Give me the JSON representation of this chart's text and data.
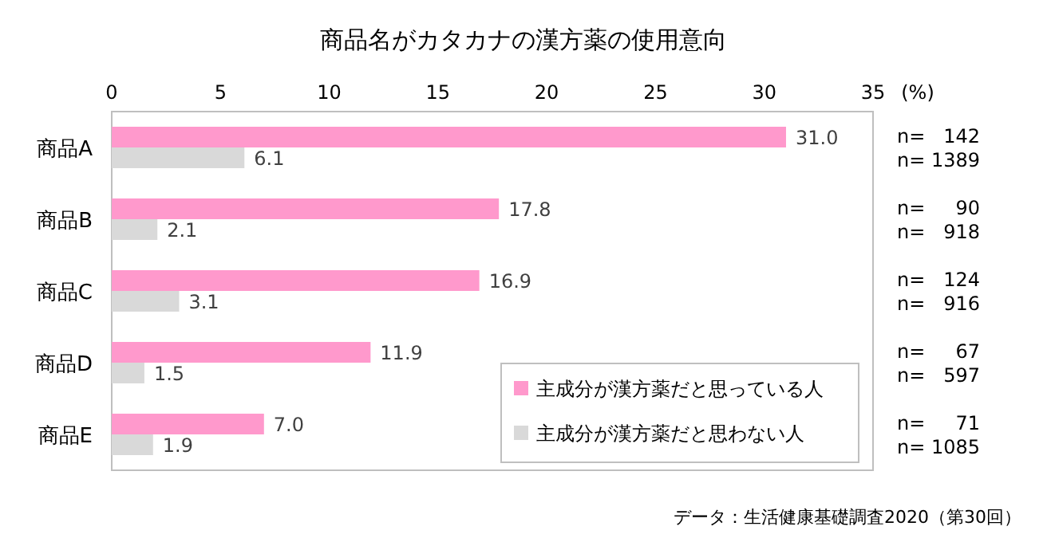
{
  "chart_data": {
    "type": "bar",
    "orientation": "horizontal",
    "title": "商品名がカタカナの漢方薬の使用意向",
    "xlabel": "(%)",
    "categories": [
      "商品A",
      "商品B",
      "商品C",
      "商品D",
      "商品E"
    ],
    "series": [
      {
        "name": "主成分が漢方薬だと思っている人",
        "color": "#ff99cc",
        "values": [
          31.0,
          17.8,
          16.9,
          11.9,
          7.0
        ],
        "value_labels": [
          "31.0",
          "17.8",
          "16.9",
          "11.9",
          "7.0"
        ]
      },
      {
        "name": "主成分が漢方薬だと思わない人",
        "color": "#d9d9d9",
        "values": [
          6.1,
          2.1,
          3.1,
          1.5,
          1.9
        ],
        "value_labels": [
          "6.1",
          "2.1",
          "3.1",
          "1.5",
          "1.9"
        ]
      }
    ],
    "xlim": [
      0,
      35
    ],
    "xticks": [
      0,
      5,
      10,
      15,
      20,
      25,
      30,
      35
    ],
    "legend": "bottom right",
    "annotations": [
      "n=   142",
      "n= 1389",
      "n=     90",
      "n=   918",
      "n=   124",
      "n=   916",
      "n=     67",
      "n=   597",
      "n=     71",
      "n= 1085",
      "データ：生活健康基礎調査2020（第30回）"
    ]
  }
}
